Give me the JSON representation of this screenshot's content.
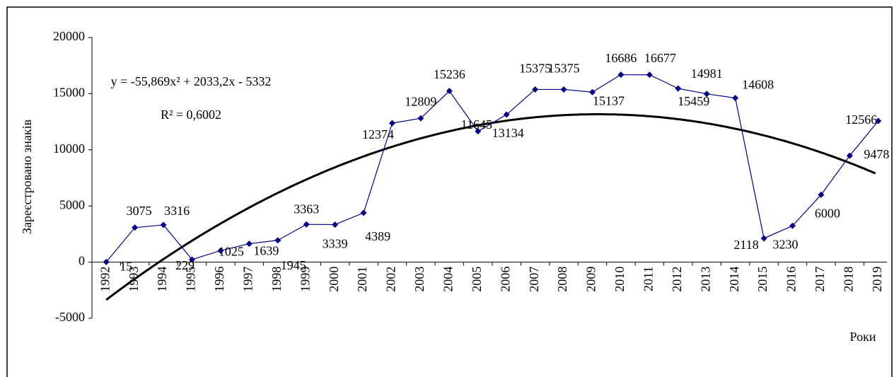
{
  "chart_data": {
    "type": "line",
    "y_label": "Зареєстровано знаків",
    "x_label": "Роки",
    "categories": [
      "1992",
      "1993",
      "1994",
      "1995",
      "1996",
      "1997",
      "1998",
      "1999",
      "2000",
      "2001",
      "2002",
      "2003",
      "2004",
      "2005",
      "2006",
      "2007",
      "2008",
      "2009",
      "2010",
      "2011",
      "2012",
      "2013",
      "2014",
      "2015",
      "2016",
      "2017",
      "2018",
      "2019"
    ],
    "series": [
      {
        "color": "#000080",
        "values": [
          15,
          3075,
          3316,
          229,
          1025,
          1639,
          1945,
          3363,
          3339,
          4389,
          12374,
          12809,
          15236,
          11645,
          13134,
          15375,
          15375,
          15137,
          16686,
          16677,
          15459,
          14981,
          14608,
          2118,
          3230,
          6000,
          9478,
          12566
        ]
      }
    ],
    "trendline": {
      "color": "#000000",
      "equation": "y = -55,869x² + 2033,2x - 5332",
      "r2": "R² = 0,6002",
      "coefficients": [
        -55.869,
        2033.2,
        -5332
      ]
    },
    "ylim": [
      -5000,
      20000
    ],
    "yticks": [
      -5000,
      0,
      5000,
      10000,
      15000,
      20000
    ],
    "grid": false
  }
}
